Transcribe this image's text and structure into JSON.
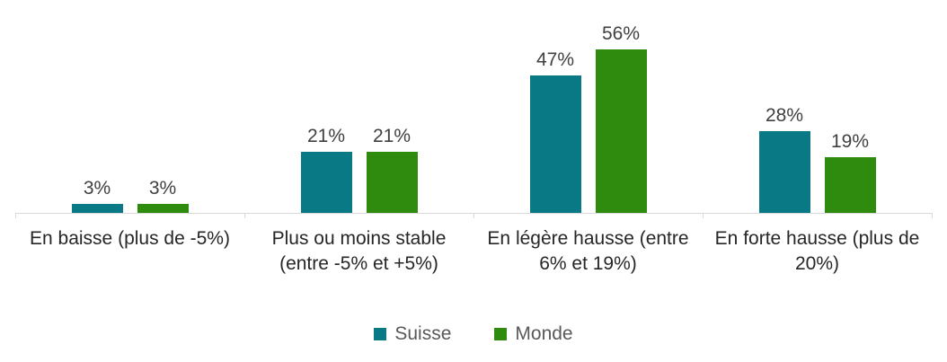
{
  "chart_data": {
    "type": "bar",
    "title": "",
    "xlabel": "",
    "ylabel": "",
    "categories": [
      "En baisse (plus de -5%)",
      "Plus ou moins stable (entre -5% et +5%)",
      "En légère hausse (entre 6% et 19%)",
      "En forte hausse (plus de 20%)"
    ],
    "series": [
      {
        "name": "Suisse",
        "color": "#097986",
        "values": [
          3,
          21,
          47,
          28
        ],
        "value_labels": [
          "3%",
          "21%",
          "47%",
          "28%"
        ]
      },
      {
        "name": "Monde",
        "color": "#2E8B0E",
        "values": [
          3,
          21,
          56,
          19
        ],
        "value_labels": [
          "3%",
          "21%",
          "56%",
          "19%"
        ]
      }
    ],
    "ylim": [
      0,
      73
    ],
    "grid": false,
    "legend_position": "bottom",
    "axis_color": "#D9D9D9",
    "value_label_color": "#404040",
    "category_label_color": "#262626",
    "legend_text_color": "#595959"
  }
}
